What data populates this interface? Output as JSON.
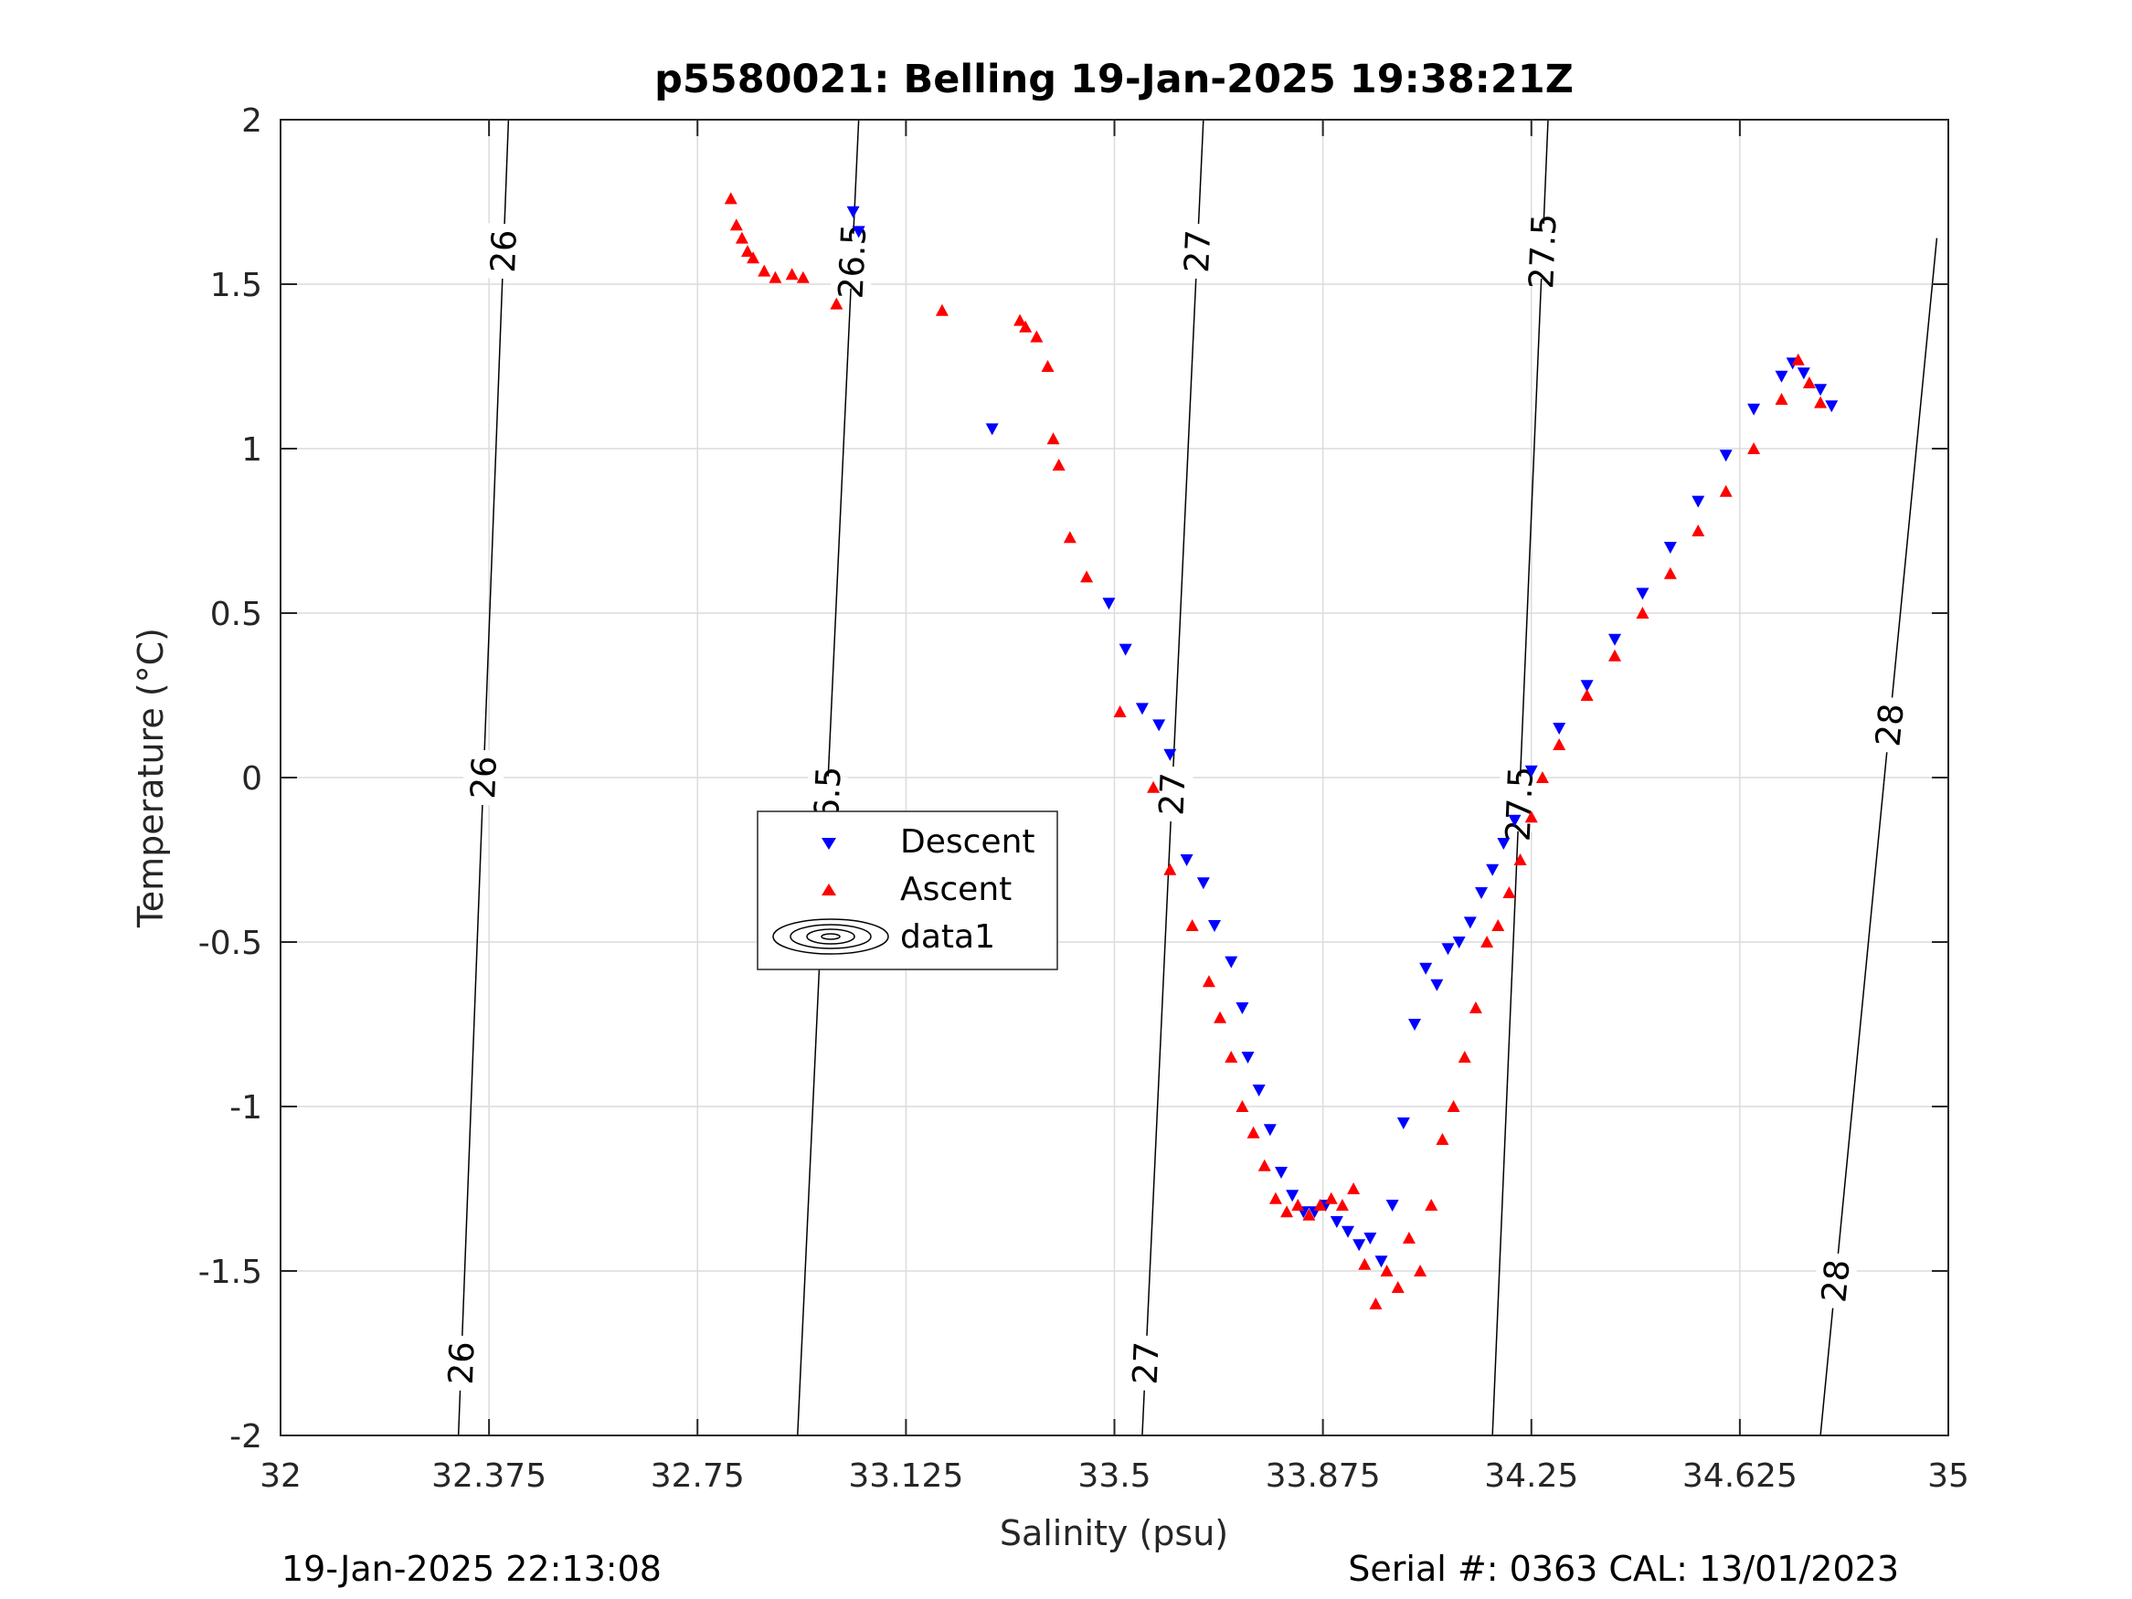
{
  "chart_data": {
    "type": "scatter",
    "title": "p5580021: Belling 19-Jan-2025 19:38:21Z",
    "xlabel": "Salinity (psu)",
    "ylabel": "Temperature (°C)",
    "xlim": [
      32,
      35
    ],
    "ylim": [
      -2,
      2
    ],
    "xticks": [
      32,
      32.375,
      32.75,
      33.125,
      33.5,
      33.875,
      34.25,
      34.625,
      35
    ],
    "xtick_labels": [
      "32",
      "32.375",
      "32.75",
      "33.125",
      "33.5",
      "33.875",
      "34.25",
      "34.625",
      "35"
    ],
    "yticks": [
      -2,
      -1.5,
      -1,
      -0.5,
      0,
      0.5,
      1,
      1.5,
      2
    ],
    "ytick_labels": [
      "-2",
      "-1.5",
      "-1",
      "-0.5",
      "0",
      "0.5",
      "1",
      "1.5",
      "2"
    ],
    "grid": true,
    "legend": {
      "placement": "center-left",
      "entries": [
        "Descent",
        "Ascent",
        "data1"
      ]
    },
    "series": [
      {
        "name": "Descent",
        "marker": "triangle-down",
        "color": "#0000ff",
        "x": [
          33.03,
          33.04,
          33.28,
          33.49,
          33.52,
          33.55,
          33.58,
          33.6,
          33.63,
          33.66,
          33.68,
          33.71,
          33.73,
          33.74,
          33.76,
          33.78,
          33.8,
          33.82,
          33.84,
          33.86,
          33.88,
          33.9,
          33.92,
          33.94,
          33.96,
          33.98,
          34.0,
          34.02,
          34.04,
          34.06,
          34.08,
          34.1,
          34.12,
          34.14,
          34.16,
          34.18,
          34.2,
          34.22,
          34.25,
          34.3,
          34.35,
          34.4,
          34.45,
          34.5,
          34.55,
          34.6,
          34.65,
          34.7,
          34.72,
          34.74,
          34.77,
          34.79
        ],
        "y": [
          1.72,
          1.66,
          1.06,
          0.53,
          0.39,
          0.21,
          0.16,
          0.07,
          -0.25,
          -0.32,
          -0.45,
          -0.56,
          -0.7,
          -0.85,
          -0.95,
          -1.07,
          -1.2,
          -1.27,
          -1.32,
          -1.32,
          -1.3,
          -1.35,
          -1.38,
          -1.42,
          -1.4,
          -1.47,
          -1.3,
          -1.05,
          -0.75,
          -0.58,
          -0.63,
          -0.52,
          -0.5,
          -0.44,
          -0.35,
          -0.28,
          -0.2,
          -0.13,
          0.02,
          0.15,
          0.28,
          0.42,
          0.56,
          0.7,
          0.84,
          0.98,
          1.12,
          1.22,
          1.26,
          1.23,
          1.18,
          1.13
        ]
      },
      {
        "name": "Ascent",
        "marker": "triangle-up",
        "color": "#ff0000",
        "x": [
          32.81,
          32.82,
          32.83,
          32.84,
          32.85,
          32.87,
          32.89,
          32.92,
          32.94,
          33.0,
          33.19,
          33.33,
          33.34,
          33.36,
          33.38,
          33.39,
          33.4,
          33.42,
          33.45,
          33.51,
          33.57,
          33.6,
          33.64,
          33.67,
          33.69,
          33.71,
          33.73,
          33.75,
          33.77,
          33.79,
          33.81,
          33.83,
          33.85,
          33.87,
          33.89,
          33.91,
          33.93,
          33.95,
          33.97,
          33.99,
          34.01,
          34.03,
          34.05,
          34.07,
          34.09,
          34.11,
          34.13,
          34.15,
          34.17,
          34.19,
          34.21,
          34.23,
          34.25,
          34.27,
          34.3,
          34.35,
          34.4,
          34.45,
          34.5,
          34.55,
          34.6,
          34.65,
          34.7,
          34.73,
          34.75,
          34.77
        ],
        "y": [
          1.76,
          1.68,
          1.64,
          1.6,
          1.58,
          1.54,
          1.52,
          1.53,
          1.52,
          1.44,
          1.42,
          1.39,
          1.37,
          1.34,
          1.25,
          1.03,
          0.95,
          0.73,
          0.61,
          0.2,
          -0.03,
          -0.28,
          -0.45,
          -0.62,
          -0.73,
          -0.85,
          -1.0,
          -1.08,
          -1.18,
          -1.28,
          -1.32,
          -1.3,
          -1.33,
          -1.3,
          -1.28,
          -1.3,
          -1.25,
          -1.48,
          -1.6,
          -1.5,
          -1.55,
          -1.4,
          -1.5,
          -1.3,
          -1.1,
          -1.0,
          -0.85,
          -0.7,
          -0.5,
          -0.45,
          -0.35,
          -0.25,
          -0.12,
          0.0,
          0.1,
          0.25,
          0.37,
          0.5,
          0.62,
          0.75,
          0.87,
          1.0,
          1.15,
          1.27,
          1.2,
          1.14
        ]
      }
    ],
    "contours": [
      {
        "value": "26",
        "labels": [
          "26",
          "26",
          "26"
        ]
      },
      {
        "value": "26.5",
        "labels": [
          "26.5",
          "26.5"
        ]
      },
      {
        "value": "27",
        "labels": [
          "27",
          "27",
          "27"
        ]
      },
      {
        "value": "27.5",
        "labels": [
          "27.5",
          "27.5"
        ]
      },
      {
        "value": "28",
        "labels": [
          "28",
          "28"
        ]
      }
    ]
  },
  "footer": {
    "left": "19-Jan-2025 22:13:08",
    "right": "Serial #: 0363  CAL: 13/01/2023"
  }
}
